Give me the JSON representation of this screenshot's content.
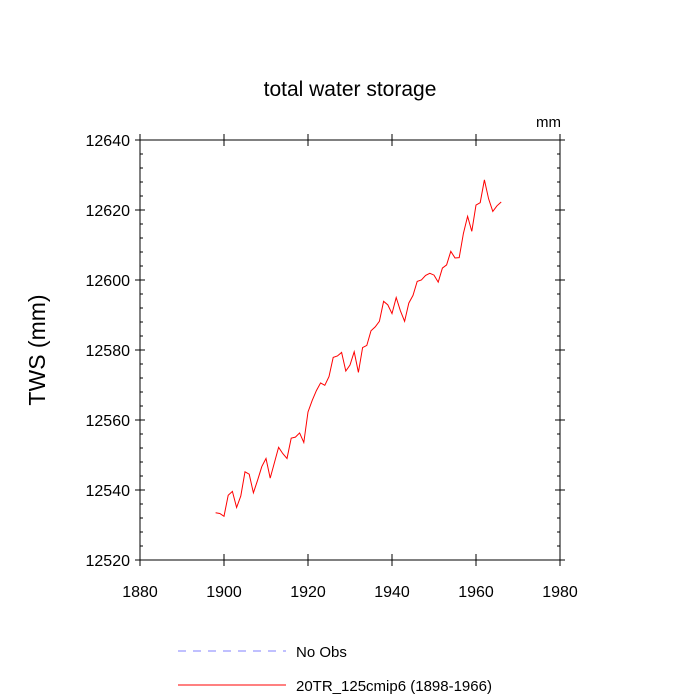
{
  "chart_data": {
    "type": "line",
    "title": "total water storage",
    "units_label": "mm",
    "ylabel": "TWS  (mm)",
    "xlabel": "",
    "xlim": [
      1880,
      1980
    ],
    "ylim": [
      12520,
      12640
    ],
    "x_ticks": [
      1880,
      1900,
      1920,
      1940,
      1960,
      1980
    ],
    "y_ticks": [
      12520,
      12540,
      12560,
      12580,
      12600,
      12620,
      12640
    ],
    "x_tick_labels": [
      "1880",
      "1900",
      "1920",
      "1940",
      "1960",
      "1980"
    ],
    "y_tick_labels": [
      "12520",
      "12540",
      "12560",
      "12580",
      "12600",
      "12620",
      "12640"
    ],
    "grid": false,
    "legend_position": "bottom",
    "series": [
      {
        "name": "No Obs",
        "color": "#8080ff",
        "dash": "dashed",
        "x": [],
        "values": []
      },
      {
        "name": "20TR_125cmip6 (1898-1966)",
        "color": "#ff0000",
        "dash": "solid",
        "x": [
          1898,
          1899,
          1900,
          1901,
          1902,
          1903,
          1904,
          1905,
          1906,
          1907,
          1908,
          1909,
          1910,
          1911,
          1912,
          1913,
          1914,
          1915,
          1916,
          1917,
          1918,
          1919,
          1920,
          1921,
          1922,
          1923,
          1924,
          1925,
          1926,
          1927,
          1928,
          1929,
          1930,
          1931,
          1932,
          1933,
          1934,
          1935,
          1936,
          1937,
          1938,
          1939,
          1940,
          1941,
          1942,
          1943,
          1944,
          1945,
          1946,
          1947,
          1948,
          1949,
          1950,
          1951,
          1952,
          1953,
          1954,
          1955,
          1956,
          1957,
          1958,
          1959,
          1960,
          1961,
          1962,
          1963,
          1964,
          1965,
          1966
        ],
        "values": [
          12533.5,
          12533.3,
          12532.5,
          12538.5,
          12539.6,
          12535.0,
          12538.3,
          12545.2,
          12544.5,
          12539.2,
          12542.8,
          12546.7,
          12549.0,
          12543.4,
          12547.8,
          12552.2,
          12550.4,
          12549.0,
          12554.8,
          12555.1,
          12556.3,
          12553.6,
          12562.3,
          12565.6,
          12568.4,
          12570.6,
          12569.9,
          12572.4,
          12577.9,
          12578.3,
          12579.3,
          12574.0,
          12575.7,
          12579.5,
          12573.6,
          12580.7,
          12581.3,
          12585.5,
          12586.6,
          12588.2,
          12593.9,
          12592.9,
          12590.4,
          12595.0,
          12591.2,
          12588.2,
          12593.4,
          12595.6,
          12599.6,
          12600.0,
          12601.3,
          12601.9,
          12601.4,
          12599.4,
          12603.4,
          12604.3,
          12608.2,
          12606.3,
          12606.4,
          12613.3,
          12618.2,
          12613.9,
          12621.4,
          12622.1,
          12628.6,
          12623.2,
          12619.6,
          12621.2,
          12622.3
        ]
      }
    ]
  }
}
